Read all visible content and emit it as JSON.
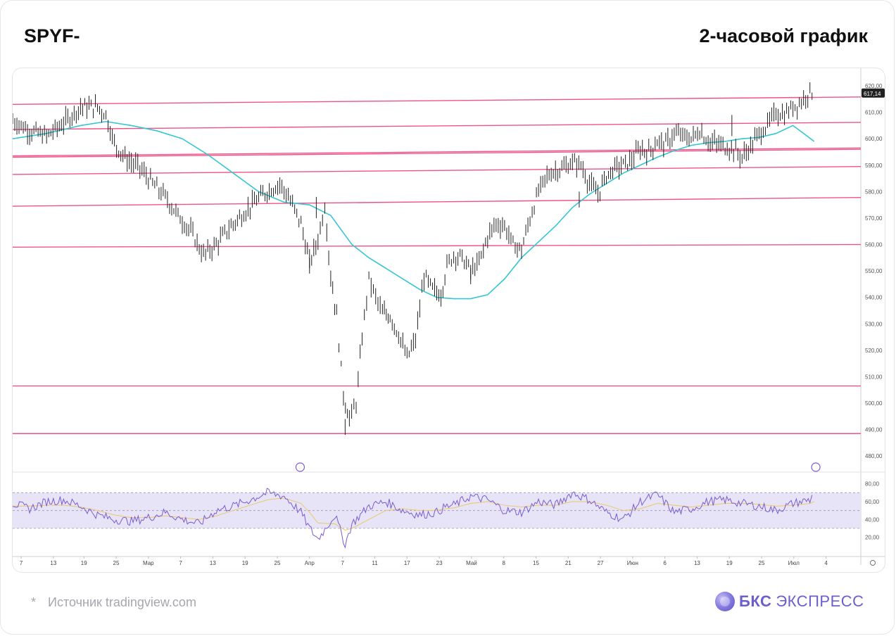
{
  "header": {
    "ticker": "SPYF-",
    "timeframe": "2-часовой график"
  },
  "footer": {
    "star": "*",
    "source": "Источник tradingview.com",
    "logo_brand": "БКС",
    "logo_word": "ЭКСПРЕСС"
  },
  "chart_data": {
    "type": "line",
    "title": "",
    "price_axis": {
      "ylim": [
        475,
        624
      ],
      "ticks": [
        "620,00",
        "610,00",
        "600,00",
        "590,00",
        "580,00",
        "570,00",
        "560,00",
        "550,00",
        "540,00",
        "530,00",
        "520,00",
        "510,00",
        "500,00",
        "490,00",
        "480,00"
      ],
      "last_price_label": "617,14",
      "last_price": 617.14
    },
    "time_axis": {
      "ticks": [
        "7",
        "13",
        "19",
        "25",
        "Мар",
        "7",
        "13",
        "19",
        "25",
        "Апр",
        "7",
        "11",
        "17",
        "23",
        "Май",
        "8",
        "15",
        "21",
        "27",
        "Июн",
        "6",
        "13",
        "19",
        "25",
        "Июл",
        "4"
      ],
      "tick_fraction": [
        0.01,
        0.048,
        0.084,
        0.122,
        0.16,
        0.198,
        0.236,
        0.274,
        0.312,
        0.35,
        0.389,
        0.427,
        0.465,
        0.503,
        0.541,
        0.579,
        0.617,
        0.655,
        0.693,
        0.731,
        0.769,
        0.807,
        0.845,
        0.883,
        0.921,
        0.959
      ]
    },
    "price_series": {
      "name": "",
      "color": "#222222",
      "x": [
        0.0,
        0.02,
        0.04,
        0.06,
        0.08,
        0.1,
        0.11,
        0.12,
        0.135,
        0.15,
        0.165,
        0.18,
        0.195,
        0.21,
        0.225,
        0.24,
        0.255,
        0.27,
        0.285,
        0.3,
        0.315,
        0.325,
        0.34,
        0.35,
        0.36,
        0.368,
        0.375,
        0.382,
        0.39,
        0.397,
        0.405,
        0.412,
        0.42,
        0.428,
        0.436,
        0.445,
        0.455,
        0.465,
        0.475,
        0.485,
        0.495,
        0.505,
        0.512,
        0.52,
        0.53,
        0.54,
        0.55,
        0.56,
        0.57,
        0.58,
        0.59,
        0.6,
        0.61,
        0.62,
        0.63,
        0.64,
        0.65,
        0.66,
        0.67,
        0.68,
        0.69,
        0.7,
        0.71,
        0.72,
        0.73,
        0.74,
        0.75,
        0.76,
        0.77,
        0.78,
        0.79,
        0.8,
        0.81,
        0.82,
        0.83,
        0.84,
        0.85,
        0.86,
        0.87,
        0.88,
        0.89,
        0.9,
        0.91,
        0.92,
        0.93,
        0.94,
        0.945
      ],
      "y": [
        607,
        603,
        601,
        606,
        612,
        612,
        609,
        598,
        592,
        589,
        583,
        578,
        571,
        565,
        556,
        560,
        566,
        571,
        576,
        580,
        583,
        578,
        568,
        553,
        562,
        575,
        548,
        533,
        503,
        494,
        500,
        525,
        547,
        540,
        534,
        533,
        526,
        517,
        524,
        548,
        543,
        541,
        552,
        556,
        555,
        550,
        553,
        563,
        568,
        567,
        560,
        558,
        570,
        580,
        586,
        588,
        589,
        591,
        590,
        583,
        579,
        586,
        589,
        590,
        592,
        596,
        595,
        599,
        598,
        602,
        601,
        600,
        603,
        599,
        598,
        597,
        596,
        593,
        597,
        602,
        605,
        610,
        609,
        612,
        614,
        618,
        617.14
      ],
      "low_spikes": [
        {
          "x": 0.392,
          "y": 488
        },
        {
          "x": 0.35,
          "y": 549
        },
        {
          "x": 0.54,
          "y": 545
        },
        {
          "x": 0.668,
          "y": 574
        }
      ],
      "high_spikes": [
        {
          "x": 0.358,
          "y": 578
        },
        {
          "x": 0.848,
          "y": 609
        }
      ]
    },
    "moving_average": {
      "name": "",
      "color": "#35c6d4",
      "x": [
        0.0,
        0.04,
        0.08,
        0.11,
        0.14,
        0.17,
        0.2,
        0.23,
        0.26,
        0.29,
        0.32,
        0.35,
        0.375,
        0.4,
        0.42,
        0.44,
        0.46,
        0.48,
        0.5,
        0.52,
        0.54,
        0.56,
        0.58,
        0.6,
        0.62,
        0.64,
        0.66,
        0.68,
        0.7,
        0.72,
        0.74,
        0.76,
        0.78,
        0.8,
        0.82,
        0.84,
        0.86,
        0.88,
        0.9,
        0.92,
        0.945
      ],
      "y": [
        600,
        602,
        605,
        606.5,
        605,
        603,
        600,
        594,
        587,
        580,
        576,
        575,
        571,
        560,
        555,
        551,
        547,
        543,
        540,
        539.5,
        539.5,
        541,
        547,
        555,
        561,
        567,
        574,
        579,
        583,
        587,
        590,
        593,
        595.5,
        597.5,
        598.5,
        599,
        600,
        600.5,
        602,
        605,
        599
      ]
    },
    "horizontal_lines": {
      "color": "#f0407a",
      "lines": [
        {
          "y_left": 613.0,
          "y_right": 615.8
        },
        {
          "y_left": 603.5,
          "y_right": 606.2
        },
        {
          "y_left": 593.5,
          "y_right": 596.5
        },
        {
          "y_left": 593.0,
          "y_right": 596.0
        },
        {
          "y_left": 586.5,
          "y_right": 589.5
        },
        {
          "y_left": 574.5,
          "y_right": 577.8
        },
        {
          "y_left": 559.0,
          "y_right": 560.0
        },
        {
          "y_left": 506.5,
          "y_right": 506.5
        },
        {
          "y_left": 488.5,
          "y_right": 488.5
        }
      ]
    },
    "rsi": {
      "ylim": [
        0,
        90
      ],
      "ticks": [
        "80,00",
        "60,00",
        "40,00",
        "20,00"
      ],
      "band": [
        30,
        70
      ],
      "band_color": "#e8e4f8",
      "rsi_color": "#7a5ccf",
      "signal_color": "#e8c86a",
      "x": [
        0.0,
        0.02,
        0.04,
        0.06,
        0.08,
        0.1,
        0.12,
        0.14,
        0.16,
        0.18,
        0.2,
        0.22,
        0.24,
        0.26,
        0.28,
        0.3,
        0.32,
        0.34,
        0.35,
        0.36,
        0.38,
        0.392,
        0.4,
        0.42,
        0.44,
        0.46,
        0.48,
        0.5,
        0.51,
        0.52,
        0.54,
        0.56,
        0.58,
        0.6,
        0.62,
        0.64,
        0.66,
        0.68,
        0.7,
        0.72,
        0.74,
        0.76,
        0.78,
        0.8,
        0.82,
        0.84,
        0.86,
        0.88,
        0.9,
        0.92,
        0.94,
        0.945
      ],
      "y": [
        58,
        52,
        60,
        62,
        55,
        45,
        40,
        38,
        42,
        48,
        40,
        35,
        50,
        55,
        62,
        70,
        66,
        48,
        30,
        18,
        45,
        12,
        35,
        55,
        60,
        50,
        45,
        48,
        54,
        56,
        66,
        62,
        50,
        48,
        60,
        56,
        70,
        62,
        48,
        40,
        60,
        68,
        48,
        52,
        60,
        62,
        58,
        55,
        50,
        58,
        62,
        70
      ],
      "signal": [
        55,
        55,
        56,
        56,
        54,
        50,
        45,
        42,
        42,
        44,
        42,
        40,
        44,
        50,
        56,
        62,
        64,
        58,
        48,
        36,
        35,
        28,
        30,
        40,
        50,
        52,
        50,
        50,
        52,
        53,
        58,
        60,
        56,
        54,
        56,
        56,
        60,
        60,
        56,
        50,
        52,
        58,
        56,
        54,
        56,
        58,
        58,
        57,
        55,
        56,
        58,
        60
      ]
    }
  }
}
